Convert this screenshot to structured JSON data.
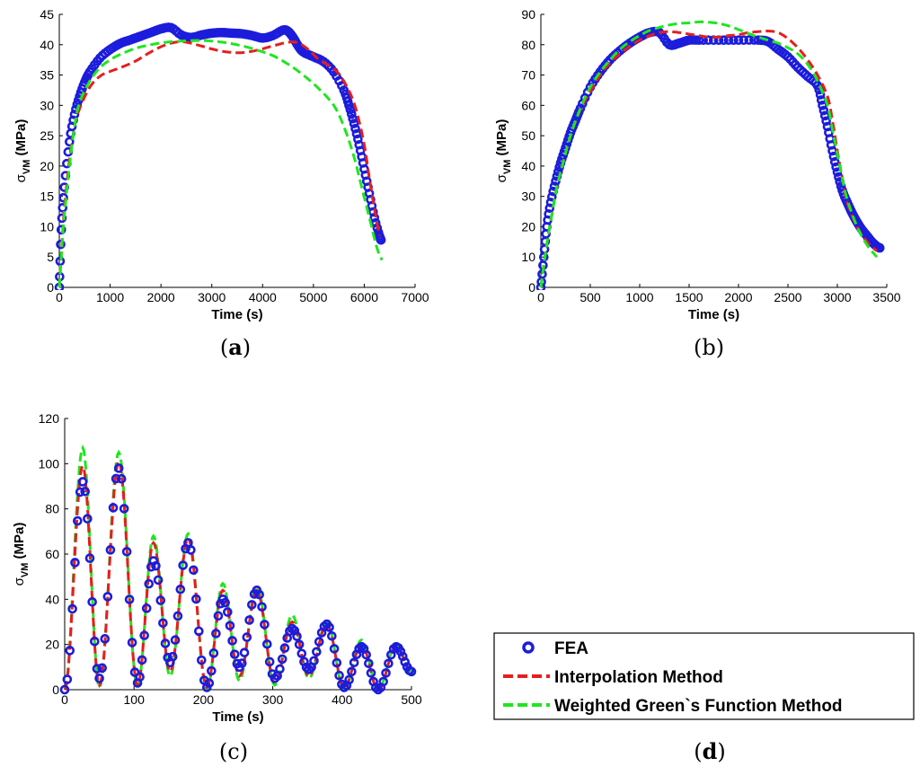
{
  "figure_captions": {
    "a": "a",
    "b": "b",
    "c": "c",
    "d": "d"
  },
  "legend": {
    "items": [
      {
        "label": "FEA",
        "style": "circle",
        "color": "#1c1cdc"
      },
      {
        "label": "Interpolation Method",
        "style": "dashed",
        "color": "#e61e1e"
      },
      {
        "label": "Weighted Green`s Function Method",
        "style": "dashed",
        "color": "#1ee61e"
      }
    ]
  },
  "chart_data": [
    {
      "id": "a",
      "type": "line",
      "xlabel": "Time (s)",
      "ylabel_main": "σ",
      "ylabel_sub": "VM",
      "ylabel_unit": " (MPa)",
      "xlim": [
        0,
        7000
      ],
      "ylim": [
        0,
        45
      ],
      "xticks": [
        0,
        1000,
        2000,
        3000,
        4000,
        5000,
        6000,
        7000
      ],
      "yticks": [
        0,
        5,
        10,
        15,
        20,
        25,
        30,
        35,
        40,
        45
      ],
      "series": [
        {
          "name": "FEA",
          "x": [
            0,
            40,
            100,
            200,
            300,
            400,
            500,
            600,
            800,
            1000,
            1200,
            1400,
            1600,
            1800,
            2000,
            2200,
            2400,
            2600,
            2800,
            3000,
            3200,
            3400,
            3600,
            3800,
            4000,
            4200,
            4400,
            4500,
            4600,
            4700,
            4800,
            5000,
            5200,
            5400,
            5600,
            5700,
            5800,
            5900,
            6000,
            6100,
            6200,
            6300,
            6330
          ],
          "y": [
            0,
            9.5,
            16.5,
            24,
            28.5,
            31.5,
            33.8,
            35.5,
            37.8,
            39.2,
            40.2,
            40.8,
            41.4,
            42,
            42.6,
            42.8,
            41.6,
            41.2,
            41.6,
            41.9,
            42,
            41.9,
            41.8,
            41.5,
            41.1,
            41.5,
            42.4,
            42.2,
            41.2,
            39.8,
            38.8,
            38,
            37.2,
            35.5,
            32.5,
            30,
            27,
            23.5,
            19.5,
            15.5,
            11.5,
            8.5,
            7.8
          ]
        },
        {
          "name": "Interpolation Method",
          "x": [
            0,
            50,
            100,
            200,
            300,
            400,
            600,
            800,
            1000,
            1200,
            1500,
            1800,
            2100,
            2400,
            2700,
            3000,
            3300,
            3600,
            3900,
            4200,
            4500,
            4700,
            4900,
            5100,
            5300,
            5500,
            5700,
            5850,
            6000,
            6100,
            6200,
            6300
          ],
          "y": [
            0,
            7,
            13,
            21,
            26.5,
            29.5,
            33,
            34.8,
            35.6,
            36.2,
            37.3,
            38.8,
            40,
            40.5,
            40,
            39.3,
            38.8,
            38.7,
            39.1,
            39.8,
            40.4,
            40.3,
            39.2,
            37.6,
            36.6,
            35.2,
            32.4,
            29,
            23.5,
            18,
            13,
            8.5
          ]
        },
        {
          "name": "Weighted Green`s Function Method",
          "x": [
            0,
            50,
            100,
            200,
            300,
            400,
            600,
            800,
            1000,
            1200,
            1500,
            1800,
            2100,
            2400,
            2700,
            3000,
            3300,
            3600,
            3900,
            4200,
            4500,
            4800,
            5100,
            5400,
            5600,
            5800,
            5950,
            6100,
            6250,
            6350
          ],
          "y": [
            0,
            6.5,
            12,
            20,
            26.5,
            30.5,
            34,
            36.2,
            37.5,
            38.4,
            39.4,
            40,
            40.4,
            40.6,
            40.7,
            40.6,
            40.3,
            39.8,
            39.1,
            38.2,
            36.8,
            35,
            32.8,
            30,
            26.5,
            21.5,
            16.5,
            11.5,
            6.5,
            4.5
          ]
        }
      ]
    },
    {
      "id": "b",
      "type": "line",
      "xlabel": "Time (s)",
      "ylabel_main": "σ",
      "ylabel_sub": "VM",
      "ylabel_unit": " (MPa)",
      "xlim": [
        0,
        3500
      ],
      "ylim": [
        0,
        90
      ],
      "xticks": [
        0,
        500,
        1000,
        1500,
        2000,
        2500,
        3000,
        3500
      ],
      "yticks": [
        0,
        10,
        20,
        30,
        40,
        50,
        60,
        70,
        80,
        90
      ],
      "series": [
        {
          "name": "FEA",
          "x": [
            0,
            30,
            60,
            100,
            150,
            200,
            250,
            300,
            350,
            400,
            500,
            600,
            700,
            800,
            900,
            1000,
            1100,
            1200,
            1300,
            1400,
            1500,
            1600,
            1800,
            2000,
            2200,
            2300,
            2400,
            2500,
            2600,
            2700,
            2800,
            2850,
            2900,
            2950,
            3000,
            3050,
            3100,
            3150,
            3200,
            3250,
            3300,
            3350,
            3400,
            3430
          ],
          "y": [
            0,
            10,
            20,
            28,
            35,
            41,
            46,
            51,
            55,
            59,
            66,
            71,
            75,
            78,
            80.5,
            82.5,
            84,
            84,
            80,
            80.5,
            81.5,
            81.5,
            81.5,
            81.5,
            81.5,
            81,
            78.5,
            76,
            72.5,
            69.5,
            66.5,
            60,
            53,
            45,
            38,
            32,
            28,
            24.5,
            21.5,
            19,
            17,
            15,
            13.5,
            13
          ]
        },
        {
          "name": "Interpolation Method",
          "x": [
            0,
            50,
            100,
            150,
            200,
            300,
            400,
            500,
            600,
            700,
            800,
            900,
            1000,
            1100,
            1200,
            1300,
            1400,
            1500,
            1600,
            1700,
            1800,
            1900,
            2000,
            2100,
            2200,
            2300,
            2400,
            2500,
            2600,
            2700,
            2800,
            2900,
            2950,
            3000,
            3050,
            3100,
            3200,
            3300,
            3400
          ],
          "y": [
            0,
            12,
            22,
            31,
            38,
            50,
            58.5,
            64.5,
            70,
            74,
            77,
            79.5,
            81.5,
            83,
            84,
            84.3,
            84,
            83.5,
            83,
            82.5,
            82.5,
            83,
            83.3,
            84,
            84.3,
            84.5,
            84,
            82,
            79,
            75,
            70,
            63,
            55,
            45,
            36,
            28,
            20,
            15,
            12
          ]
        },
        {
          "name": "Weighted Green`s Function Method",
          "x": [
            0,
            50,
            100,
            150,
            200,
            300,
            400,
            500,
            600,
            700,
            800,
            900,
            1000,
            1100,
            1200,
            1300,
            1400,
            1500,
            1600,
            1700,
            1800,
            1900,
            2000,
            2100,
            2200,
            2300,
            2400,
            2500,
            2600,
            2700,
            2800,
            2900,
            2950,
            3000,
            3050,
            3100,
            3200,
            3300,
            3400
          ],
          "y": [
            0,
            12,
            22,
            31,
            38,
            50,
            59,
            66,
            71,
            75,
            78.5,
            81,
            83,
            84.7,
            85.7,
            86.5,
            87,
            87.2,
            87.5,
            87.4,
            87,
            86.2,
            85,
            83.7,
            82.5,
            81.5,
            80.5,
            79,
            77,
            73.5,
            68,
            60,
            52,
            44,
            36,
            29,
            20,
            14,
            10
          ]
        }
      ]
    },
    {
      "id": "c",
      "type": "line",
      "xlabel": "Time (s)",
      "ylabel_main": "σ",
      "ylabel_sub": "VM",
      "ylabel_unit": " (MPa)",
      "xlim": [
        0,
        500
      ],
      "ylim": [
        0,
        120
      ],
      "xticks": [
        0,
        100,
        200,
        300,
        400,
        500
      ],
      "yticks": [
        0,
        20,
        40,
        60,
        80,
        100,
        120
      ],
      "oscillation": {
        "period": 50,
        "FEA": {
          "peak_times": [
            26,
            78,
            128,
            178,
            228,
            277,
            328,
            378,
            428,
            478
          ],
          "peaks": [
            92,
            98,
            57,
            65,
            40,
            44,
            27,
            29,
            19,
            19
          ],
          "troughs": [
            0,
            5,
            3,
            12,
            1,
            10,
            5,
            9,
            1,
            0,
            8
          ],
          "trough_times": [
            0,
            50,
            105,
            152,
            205,
            252,
            303,
            352,
            403,
            452,
            500
          ]
        },
        "Interpolation Method": {
          "peak_times": [
            26,
            78,
            128,
            178,
            228,
            277,
            328,
            378,
            428,
            478
          ],
          "peaks": [
            99,
            101,
            65,
            67,
            44,
            44,
            30,
            29,
            20,
            19
          ],
          "troughs": [
            0,
            2,
            2,
            8,
            1,
            6,
            3,
            6,
            1,
            0,
            8
          ],
          "trough_times": [
            0,
            50,
            105,
            152,
            205,
            252,
            303,
            352,
            403,
            452,
            500
          ]
        },
        "Weighted Green`s Function Method": {
          "peak_times": [
            26,
            78,
            128,
            178,
            228,
            277,
            328,
            378,
            428,
            478
          ],
          "peaks": [
            107,
            105,
            68,
            69,
            47,
            46,
            33,
            30,
            22,
            20
          ],
          "troughs": [
            0,
            1,
            1,
            6,
            0,
            4,
            2,
            5,
            0,
            0,
            8
          ],
          "trough_times": [
            0,
            50,
            105,
            152,
            205,
            252,
            303,
            352,
            403,
            452,
            500
          ]
        }
      }
    }
  ]
}
